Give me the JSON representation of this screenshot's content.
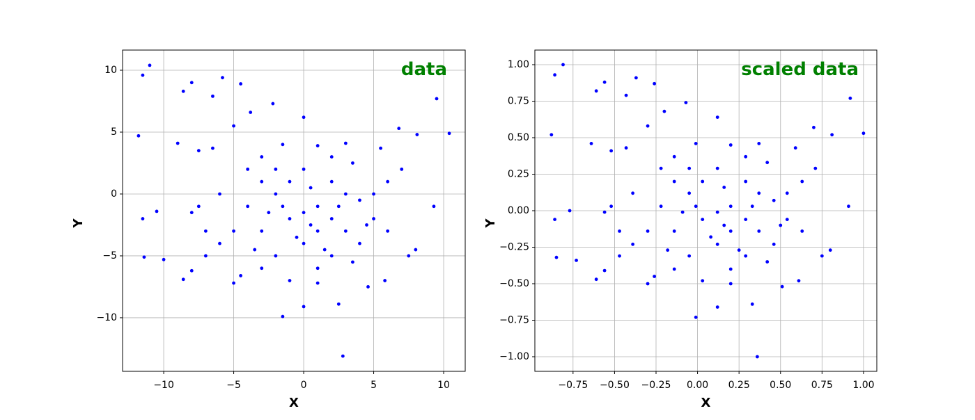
{
  "chart_data": [
    {
      "type": "scatter",
      "annotation": "data",
      "annotation_color": "#008000",
      "x_label": "X",
      "y_label": "Y",
      "color": "#0000ff",
      "grid": true,
      "xlim": [
        -12.94,
        11.54
      ],
      "ylim": [
        -14.33,
        11.63
      ],
      "xticks": [
        {
          "value": -10,
          "label": "−10"
        },
        {
          "value": -5,
          "label": "−5"
        },
        0,
        5,
        10
      ],
      "yticks": [
        {
          "value": -10,
          "label": "−10"
        },
        {
          "value": -5,
          "label": "−5"
        },
        0,
        5,
        10
      ],
      "x": [
        -11.8,
        -11.5,
        -11,
        -11.5,
        -11.4,
        -10.5,
        -10,
        -9,
        -8.6,
        -8,
        -7.5,
        -8.6,
        -8,
        -6.5,
        -5.8,
        -4.5,
        -3.8,
        -2.2,
        0,
        -1.5,
        0,
        2.8,
        2.5,
        9.5,
        10.4,
        9.3,
        8.1,
        6.8,
        8,
        7.5,
        5.8,
        4.6,
        -5,
        -4.5,
        3,
        -1.5,
        1,
        -3,
        -2,
        -1,
        0,
        1,
        2,
        3,
        -3,
        -2,
        1,
        2,
        4,
        5,
        -4,
        -4,
        -2,
        0,
        2,
        3,
        5,
        6,
        6,
        7,
        -6,
        -6,
        -7,
        -7.5,
        -5,
        -3,
        0,
        1,
        -1,
        0.5,
        -2.5,
        1.5,
        3.5,
        4.5,
        -8,
        -6.5,
        -5,
        -3,
        2,
        -1,
        1,
        3.5,
        5.5,
        -7,
        -3.5,
        0.5,
        -0.5,
        2.5,
        4,
        -1.5
      ],
      "values": [
        4.7,
        9.6,
        10.4,
        -2,
        -5.1,
        -1.4,
        -5.3,
        4.1,
        8.3,
        9,
        3.5,
        -6.9,
        -6.2,
        7.9,
        9.4,
        8.9,
        6.6,
        7.3,
        6.2,
        -9.9,
        -9.1,
        -13.1,
        -8.9,
        7.7,
        4.9,
        -1,
        4.8,
        5.3,
        -4.5,
        -5,
        -7,
        -7.5,
        -7.2,
        -6.6,
        4.1,
        4,
        3.9,
        1,
        0,
        -2,
        -1.5,
        -3,
        -2,
        -3,
        -3,
        -5,
        -6,
        -5,
        -4,
        -2,
        -1,
        2,
        2,
        2,
        1,
        0,
        0,
        1,
        -3,
        2,
        0,
        -4,
        -3,
        -1,
        -3,
        -6,
        -4,
        -1,
        1,
        0.5,
        -1.5,
        -4.5,
        -5.5,
        -2.5,
        -1.5,
        3.7,
        5.5,
        3,
        3,
        -7,
        -7.2,
        2.5,
        3.7,
        -5,
        -4.5,
        -2.5,
        -3.5,
        -1,
        -0.5,
        -1
      ]
    },
    {
      "type": "scatter",
      "annotation": "scaled data",
      "annotation_color": "#008000",
      "x_label": "X",
      "y_label": "Y",
      "color": "#0000ff",
      "grid": true,
      "xlim": [
        -0.98,
        1.08
      ],
      "ylim": [
        -1.1,
        1.1
      ],
      "xticks": [
        {
          "value": -0.75,
          "label": "−0.75"
        },
        {
          "value": -0.5,
          "label": "−0.50"
        },
        {
          "value": -0.25,
          "label": "−0.25"
        },
        {
          "value": 0,
          "label": "0.00"
        },
        0.25,
        {
          "value": 0.5,
          "label": "0.50"
        },
        0.75,
        {
          "value": 1,
          "label": "1.00"
        }
      ],
      "yticks": [
        {
          "value": -1,
          "label": "−1.00"
        },
        {
          "value": -0.75,
          "label": "−0.75"
        },
        {
          "value": -0.5,
          "label": "−0.50"
        },
        {
          "value": -0.25,
          "label": "−0.25"
        },
        {
          "value": 0,
          "label": "0.00"
        },
        0.25,
        {
          "value": 0.5,
          "label": "0.50"
        },
        0.75,
        {
          "value": 1,
          "label": "1.00"
        }
      ],
      "x": [
        -0.88,
        -0.86,
        -0.81,
        -0.86,
        -0.85,
        -0.77,
        -0.73,
        -0.64,
        -0.61,
        -0.56,
        -0.52,
        -0.61,
        -0.56,
        -0.43,
        -0.37,
        -0.26,
        -0.2,
        -0.07,
        0.12,
        -0.01,
        0.12,
        0.36,
        0.33,
        0.92,
        1,
        0.91,
        0.81,
        0.7,
        0.8,
        0.75,
        0.61,
        0.51,
        -0.3,
        -0.26,
        0.37,
        -0.01,
        0.2,
        -0.14,
        -0.05,
        0.03,
        0.12,
        0.2,
        0.29,
        0.37,
        -0.14,
        -0.05,
        0.2,
        0.29,
        0.46,
        0.54,
        -0.22,
        -0.22,
        -0.05,
        0.12,
        0.29,
        0.37,
        0.54,
        0.63,
        0.63,
        0.71,
        -0.39,
        -0.39,
        -0.47,
        -0.52,
        -0.3,
        -0.14,
        0.12,
        0.2,
        0.03,
        0.16,
        -0.09,
        0.25,
        0.42,
        0.5,
        -0.56,
        -0.43,
        -0.3,
        -0.14,
        0.29,
        0.03,
        0.2,
        0.42,
        0.59,
        -0.47,
        -0.18,
        0.16,
        0.08,
        0.33,
        0.46,
        -0.01
      ],
      "values": [
        0.52,
        0.93,
        1,
        -0.06,
        -0.32,
        0,
        -0.34,
        0.46,
        0.82,
        0.88,
        0.41,
        -0.47,
        -0.41,
        0.79,
        0.91,
        0.87,
        0.68,
        0.74,
        0.64,
        -0.73,
        -0.66,
        -1,
        -0.64,
        0.77,
        0.53,
        0.03,
        0.52,
        0.57,
        -0.27,
        -0.31,
        -0.48,
        -0.52,
        -0.5,
        -0.45,
        0.46,
        0.46,
        0.45,
        0.2,
        0.12,
        -0.06,
        -0.01,
        -0.14,
        -0.06,
        -0.14,
        -0.14,
        -0.31,
        -0.4,
        -0.31,
        -0.23,
        -0.06,
        0.03,
        0.29,
        0.29,
        0.29,
        0.2,
        0.12,
        0.12,
        0.2,
        -0.14,
        0.29,
        0.12,
        -0.23,
        -0.14,
        0.03,
        -0.14,
        -0.4,
        -0.23,
        0.03,
        0.2,
        0.16,
        -0.01,
        -0.27,
        -0.35,
        -0.1,
        -0.01,
        0.43,
        0.58,
        0.37,
        0.37,
        -0.48,
        -0.5,
        0.33,
        0.43,
        -0.31,
        -0.27,
        -0.1,
        -0.18,
        0.03,
        0.07,
        0.03
      ]
    }
  ]
}
